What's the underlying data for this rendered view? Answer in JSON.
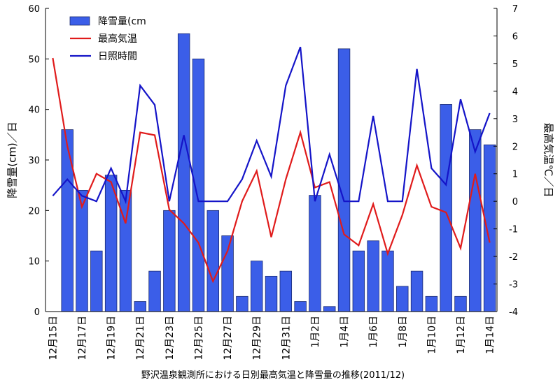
{
  "chart_data": {
    "type": "bar",
    "x_label": "野沢温泉観測所における日別最高気温と降雪量の推移(2011/12)",
    "y_label": "降雪量(cm)／日",
    "y2_label": "最高気温℃／日",
    "categories": [
      "12月15日",
      null,
      "12月17日",
      null,
      "12月19日",
      null,
      "12月21日",
      null,
      "12月23日",
      null,
      "12月25日",
      null,
      "12月27日",
      null,
      "12月29日",
      null,
      "12月31日",
      null,
      "1月2日",
      null,
      "1月4日",
      null,
      "1月6日",
      null,
      "1月8日",
      null,
      "1月10日",
      null,
      "1月12日",
      null,
      "1月14日"
    ],
    "series": [
      {
        "name": "降雪量(cm",
        "type": "bar",
        "color": "#3b5ee8",
        "values": [
          0,
          36,
          24,
          12,
          27,
          24,
          2,
          8,
          20,
          55,
          50,
          20,
          15,
          3,
          10,
          7,
          8,
          2,
          23,
          1,
          52,
          12,
          14,
          12,
          5,
          8,
          3,
          41,
          3,
          36,
          33
        ]
      },
      {
        "name": "最高気温",
        "type": "line",
        "axis": "y2",
        "color": "#e01b1b",
        "values": [
          5.2,
          2.0,
          -0.2,
          1.0,
          0.7,
          -0.8,
          2.5,
          2.4,
          -0.3,
          -0.8,
          -1.5,
          -2.9,
          -1.8,
          0,
          1.1,
          -1.3,
          0.8,
          2.5,
          0.5,
          0.7,
          -1.2,
          -1.6,
          -0.1,
          -1.9,
          -0.5,
          1.3,
          -0.2,
          -0.4,
          -1.7,
          1.0,
          -1.5
        ]
      },
      {
        "name": "日照時間",
        "type": "line",
        "axis": "y2",
        "color": "#1414c8",
        "values": [
          0.2,
          0.8,
          0.2,
          0,
          1.2,
          0,
          4.2,
          3.5,
          0,
          2.4,
          0,
          0,
          0,
          0.8,
          2.2,
          0.9,
          4.2,
          5.6,
          0,
          1.7,
          0,
          0,
          3.1,
          0,
          0,
          4.8,
          1.2,
          0.6,
          3.7,
          1.8,
          3.2
        ]
      }
    ],
    "ylim": [
      0,
      60
    ],
    "yticks": [
      0,
      10,
      20,
      30,
      40,
      50,
      60
    ],
    "y2lim": [
      -4,
      7
    ],
    "y2ticks": [
      -4,
      -3,
      -2,
      -1,
      0,
      1,
      2,
      3,
      4,
      5,
      6,
      7
    ],
    "legend": "upper left"
  }
}
